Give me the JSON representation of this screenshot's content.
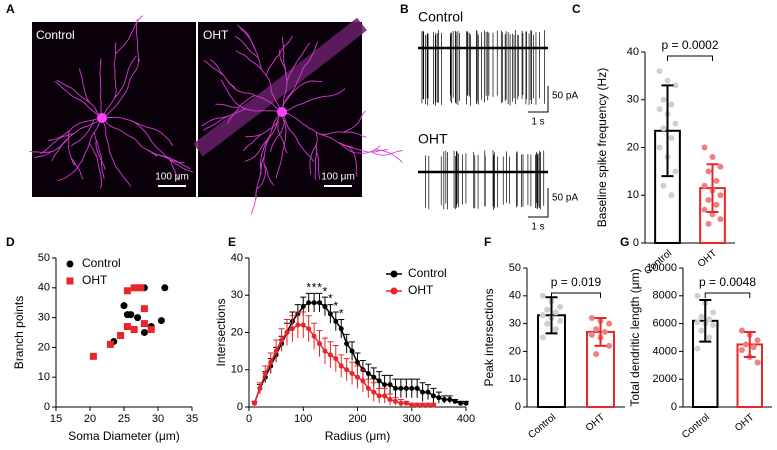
{
  "panel_labels": [
    "A",
    "B",
    "C",
    "D",
    "E",
    "F",
    "G"
  ],
  "images": {
    "control_label": "Control",
    "oht_label": "OHT",
    "scale_bar": "100 μm"
  },
  "traces": {
    "control_label": "Control",
    "oht_label": "OHT",
    "amplitude_scale": "50 pA",
    "time_scale": "1 s"
  },
  "chart_data": [
    {
      "type": "bar",
      "y_label": "Baseline spike frequency (Hz)",
      "categories": [
        "Control",
        "OHT"
      ],
      "values": [
        23.5,
        11.5
      ],
      "errors": [
        9.5,
        5
      ],
      "colors": [
        "#000000",
        "#e8262a"
      ],
      "point_colors": [
        "#cfcfcf",
        "#ef8080"
      ],
      "points": [
        [
          36,
          34,
          33,
          30,
          29,
          28,
          27,
          25,
          24,
          22,
          20,
          18,
          15,
          12,
          10
        ],
        [
          20,
          18,
          16,
          15,
          13,
          12,
          11,
          10,
          9,
          8,
          7,
          6,
          5,
          4
        ]
      ],
      "ylim": [
        0,
        40
      ],
      "yticks": [
        0,
        10,
        20,
        30,
        40
      ],
      "annotation": "p = 0.0002"
    },
    {
      "type": "scatter",
      "x_label": "Soma Diameter (μm)",
      "y_label": "Branch points",
      "series": [
        {
          "name": "Control",
          "color": "#000000",
          "marker": "circle",
          "x": [
            23.5,
            25,
            25.5,
            26,
            27,
            27,
            28,
            28,
            29,
            29,
            30.5,
            31
          ],
          "values": [
            22,
            34,
            31,
            31,
            40,
            30,
            40,
            25,
            27,
            26,
            29,
            40
          ]
        },
        {
          "name": "OHT",
          "color": "#e8262a",
          "marker": "square",
          "x": [
            20.5,
            23,
            24.5,
            25.5,
            25.5,
            26.5,
            26.5,
            27.5,
            28,
            28,
            29
          ],
          "values": [
            17,
            21,
            24,
            39,
            27,
            40,
            26,
            40,
            33,
            28,
            26
          ]
        }
      ],
      "xlim": [
        15,
        35
      ],
      "xticks": [
        15,
        20,
        25,
        30,
        35
      ],
      "ylim": [
        0,
        50
      ],
      "yticks": [
        0,
        10,
        20,
        30,
        40,
        50
      ],
      "legend": "top-left"
    },
    {
      "type": "line",
      "x_label": "Radius (μm)",
      "y_label": "Intersections",
      "x": [
        10,
        20,
        30,
        40,
        50,
        60,
        70,
        80,
        90,
        100,
        110,
        120,
        130,
        140,
        150,
        160,
        170,
        180,
        190,
        200,
        210,
        220,
        230,
        240,
        250,
        260,
        270,
        280,
        290,
        300,
        310,
        320,
        330,
        340,
        350,
        360,
        370,
        380,
        390,
        400
      ],
      "series": [
        {
          "name": "Control",
          "color": "#000000",
          "values": [
            1,
            5,
            8,
            11,
            14,
            17,
            20,
            23,
            25,
            27,
            28,
            28,
            28,
            27,
            25,
            23,
            21,
            17,
            15,
            12,
            10,
            9,
            8,
            7,
            6,
            6,
            5,
            5,
            5,
            5,
            5,
            4,
            4,
            3,
            2.5,
            2,
            2,
            1.5,
            1,
            1
          ],
          "errors": [
            0.5,
            1,
            1.5,
            2,
            2,
            2,
            2.5,
            2.5,
            2.5,
            2.5,
            2.5,
            2.5,
            2.5,
            2.5,
            2.5,
            2.5,
            2.5,
            2.5,
            2.5,
            2.5,
            2.5,
            2.5,
            2.5,
            2.5,
            2.5,
            2.5,
            2.5,
            2.5,
            2.5,
            2.5,
            2.5,
            2.5,
            2,
            2,
            1.5,
            1,
            1,
            0.5,
            0.5,
            0.5
          ]
        },
        {
          "name": "OHT",
          "color": "#e8262a",
          "values": [
            1,
            5,
            9,
            12,
            15,
            18,
            20,
            21,
            22,
            22,
            21,
            19,
            17,
            15,
            14,
            13,
            11,
            10,
            9,
            8,
            7,
            5,
            4,
            3,
            3,
            2,
            1.5,
            1,
            1,
            0.5,
            0.5,
            0.5,
            0.5,
            0.5,
            null,
            null,
            null,
            null,
            null,
            null
          ],
          "errors": [
            0.5,
            1.5,
            2,
            2.5,
            3,
            3,
            3.5,
            3.5,
            3.5,
            3.5,
            3.5,
            3.5,
            3.5,
            3.5,
            3.5,
            3.5,
            3,
            3,
            3,
            3,
            3,
            2.5,
            2.5,
            2,
            2,
            1.5,
            1,
            1,
            0.5,
            0.5,
            0.5,
            0.5,
            0.5,
            0.5,
            null,
            null,
            null,
            null,
            null,
            null
          ]
        }
      ],
      "significance": {
        "label": "*",
        "x": [
          110,
          120,
          130,
          140,
          150,
          160,
          170
        ]
      },
      "xlim": [
        0,
        400
      ],
      "xticks": [
        0,
        100,
        200,
        300,
        400
      ],
      "ylim": [
        0,
        40
      ],
      "yticks": [
        0,
        10,
        20,
        30,
        40
      ],
      "legend": "top-right"
    },
    {
      "type": "bar",
      "y_label": "Peak intersections",
      "categories": [
        "Control",
        "OHT"
      ],
      "values": [
        33,
        27
      ],
      "errors": [
        6.5,
        5
      ],
      "colors": [
        "#000000",
        "#e8262a"
      ],
      "point_colors": [
        "#cfcfcf",
        "#ef8080"
      ],
      "points": [
        [
          40,
          38,
          36,
          35,
          34,
          33,
          32,
          31,
          30,
          28,
          25
        ],
        [
          32,
          31,
          30,
          28,
          27,
          26,
          25,
          22,
          19
        ]
      ],
      "ylim": [
        0,
        50
      ],
      "yticks": [
        0,
        10,
        20,
        30,
        40,
        50
      ],
      "annotation": "p = 0.019"
    },
    {
      "type": "bar",
      "y_label": "Total dendritic length (μm)",
      "categories": [
        "Control",
        "OHT"
      ],
      "values": [
        6200,
        4500
      ],
      "errors": [
        1500,
        900
      ],
      "colors": [
        "#000000",
        "#e8262a"
      ],
      "point_colors": [
        "#cfcfcf",
        "#ef8080"
      ],
      "points": [
        [
          8000,
          7500,
          6800,
          6500,
          6300,
          6100,
          6000,
          5900,
          5500,
          5000,
          4200
        ],
        [
          5500,
          5200,
          4800,
          4500,
          4300,
          4100,
          3600,
          3200
        ]
      ],
      "ylim": [
        0,
        10000
      ],
      "yticks": [
        0,
        2000,
        4000,
        6000,
        8000,
        10000
      ],
      "annotation": "p = 0.0048"
    }
  ]
}
